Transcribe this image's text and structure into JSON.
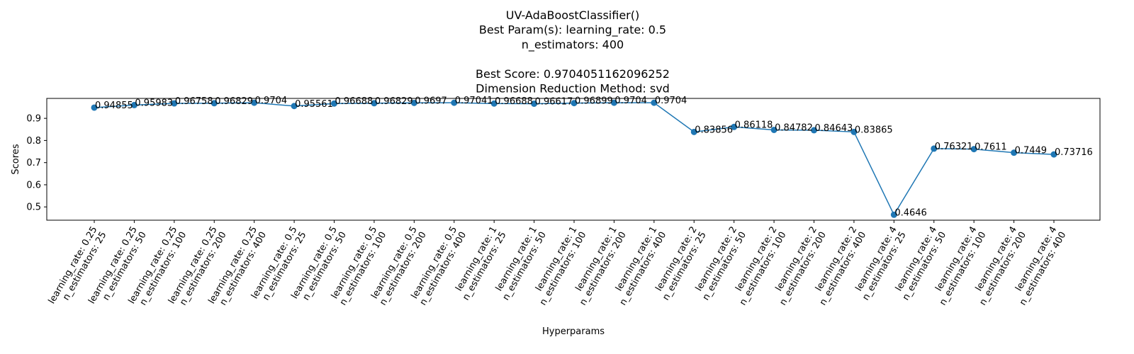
{
  "chart_data": {
    "type": "line",
    "title_lines": [
      "UV-AdaBoostClassifier()",
      "Best Param(s): learning_rate: 0.5",
      "n_estimators: 400",
      "",
      "Best Score: 0.9704051162096252",
      "Dimension Reduction Method: svd"
    ],
    "xlabel": "Hyperparams",
    "ylabel": "Scores",
    "ylim": [
      0.44,
      0.99
    ],
    "yticks": [
      "0.5",
      "0.6",
      "0.7",
      "0.8",
      "0.9"
    ],
    "grid": false,
    "line_color": "#1f77b4",
    "categories": [
      "learning_rate: 0.25\nn_estimators: 25",
      "learning_rate: 0.25\nn_estimators: 50",
      "learning_rate: 0.25\nn_estimators: 100",
      "learning_rate: 0.25\nn_estimators: 200",
      "learning_rate: 0.25\nn_estimators: 400",
      "learning_rate: 0.5\nn_estimators: 25",
      "learning_rate: 0.5\nn_estimators: 50",
      "learning_rate: 0.5\nn_estimators: 100",
      "learning_rate: 0.5\nn_estimators: 200",
      "learning_rate: 0.5\nn_estimators: 400",
      "learning_rate: 1\nn_estimators: 25",
      "learning_rate: 1\nn_estimators: 50",
      "learning_rate: 1\nn_estimators: 100",
      "learning_rate: 1\nn_estimators: 200",
      "learning_rate: 1\nn_estimators: 400",
      "learning_rate: 2\nn_estimators: 25",
      "learning_rate: 2\nn_estimators: 50",
      "learning_rate: 2\nn_estimators: 100",
      "learning_rate: 2\nn_estimators: 200",
      "learning_rate: 2\nn_estimators: 400",
      "learning_rate: 4\nn_estimators: 25",
      "learning_rate: 4\nn_estimators: 50",
      "learning_rate: 4\nn_estimators: 100",
      "learning_rate: 4\nn_estimators: 200",
      "learning_rate: 4\nn_estimators: 400"
    ],
    "values": [
      0.94855,
      0.95983,
      0.96758,
      0.96829,
      0.9704,
      0.95561,
      0.96688,
      0.96829,
      0.9697,
      0.97041,
      0.96688,
      0.96617,
      0.96899,
      0.9704,
      0.9704,
      0.83856,
      0.86118,
      0.84782,
      0.84643,
      0.83865,
      0.4646,
      0.76321,
      0.7611,
      0.7449,
      0.73716
    ],
    "value_labels": [
      "0.94855",
      "0.95983",
      "0.96758",
      "0.96829",
      "0.9704",
      "0.95561",
      "0.96688",
      "0.96829",
      "0.9697",
      "0.97041",
      "0.96688",
      "0.96617",
      "0.96899",
      "0.9704",
      "0.9704",
      "0.83856",
      "0.86118",
      "0.84782",
      "0.84643",
      "0.83865",
      "0.4646",
      "0.76321",
      "0.7611",
      "0.7449",
      "0.73716"
    ]
  }
}
